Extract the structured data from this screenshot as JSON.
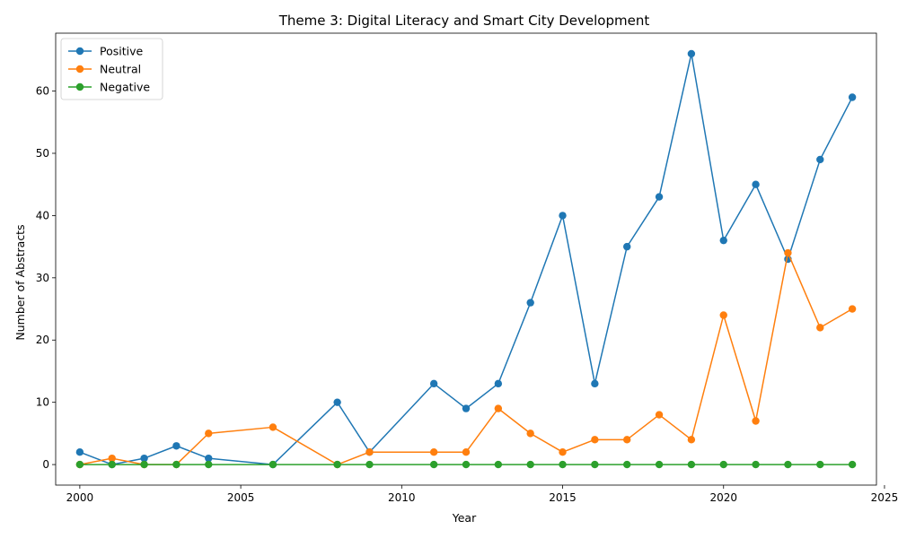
{
  "chart_data": {
    "type": "line",
    "title": "Theme 3: Digital Literacy and Smart City Development",
    "xlabel": "Year",
    "ylabel": "Number of Abstracts",
    "xlim": [
      1999.25,
      2024.75
    ],
    "ylim": [
      -3.3,
      69.3
    ],
    "x_ticks": [
      2000,
      2005,
      2010,
      2015,
      2020,
      2025
    ],
    "y_ticks": [
      0,
      10,
      20,
      30,
      40,
      50,
      60
    ],
    "grid": false,
    "legend_position": "top-left",
    "series": [
      {
        "name": "Positive",
        "color": "#1f77b4",
        "points": [
          [
            2000,
            2
          ],
          [
            2001,
            0
          ],
          [
            2002,
            1
          ],
          [
            2003,
            3
          ],
          [
            2004,
            1
          ],
          [
            2006,
            0
          ],
          [
            2008,
            10
          ],
          [
            2009,
            2
          ],
          [
            2011,
            13
          ],
          [
            2012,
            9
          ],
          [
            2013,
            13
          ],
          [
            2014,
            26
          ],
          [
            2015,
            40
          ],
          [
            2016,
            13
          ],
          [
            2017,
            35
          ],
          [
            2018,
            43
          ],
          [
            2019,
            66
          ],
          [
            2020,
            36
          ],
          [
            2021,
            45
          ],
          [
            2022,
            33
          ],
          [
            2023,
            49
          ],
          [
            2024,
            59
          ]
        ]
      },
      {
        "name": "Neutral",
        "color": "#ff7f0e",
        "points": [
          [
            2000,
            0
          ],
          [
            2001,
            1
          ],
          [
            2002,
            0
          ],
          [
            2003,
            0
          ],
          [
            2004,
            5
          ],
          [
            2006,
            6
          ],
          [
            2008,
            0
          ],
          [
            2009,
            2
          ],
          [
            2011,
            2
          ],
          [
            2012,
            2
          ],
          [
            2013,
            9
          ],
          [
            2014,
            5
          ],
          [
            2015,
            2
          ],
          [
            2016,
            4
          ],
          [
            2017,
            4
          ],
          [
            2018,
            8
          ],
          [
            2019,
            4
          ],
          [
            2020,
            24
          ],
          [
            2021,
            7
          ],
          [
            2022,
            34
          ],
          [
            2023,
            22
          ],
          [
            2024,
            25
          ]
        ]
      },
      {
        "name": "Negative",
        "color": "#2ca02c",
        "points": [
          [
            2000,
            0
          ],
          [
            2001,
            0
          ],
          [
            2002,
            0
          ],
          [
            2003,
            0
          ],
          [
            2004,
            0
          ],
          [
            2006,
            0
          ],
          [
            2008,
            0
          ],
          [
            2009,
            0
          ],
          [
            2011,
            0
          ],
          [
            2012,
            0
          ],
          [
            2013,
            0
          ],
          [
            2014,
            0
          ],
          [
            2015,
            0
          ],
          [
            2016,
            0
          ],
          [
            2017,
            0
          ],
          [
            2018,
            0
          ],
          [
            2019,
            0
          ],
          [
            2020,
            0
          ],
          [
            2021,
            0
          ],
          [
            2022,
            0
          ],
          [
            2023,
            0
          ],
          [
            2024,
            0
          ]
        ]
      }
    ]
  }
}
